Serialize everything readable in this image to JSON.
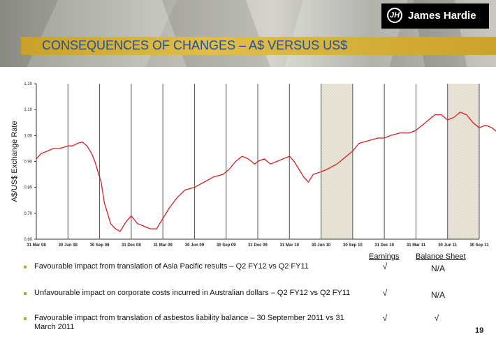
{
  "header": {
    "title": "CONSEQUENCES OF CHANGES – A$ VERSUS US$",
    "logo_text": "James Hardie",
    "logo_mark": "JH"
  },
  "chart_data": {
    "type": "line",
    "title": "",
    "xlabel": "",
    "ylabel": "A$/US$ Exchange Rate",
    "ylim": [
      0.6,
      1.2
    ],
    "yticks": [
      "0.60",
      "0.70",
      "0.80",
      "0.90",
      "1.00",
      "1.10",
      "1.20"
    ],
    "x_categories": [
      "31 Mar 08",
      "30 Jun 08",
      "30 Sep 08",
      "31 Dec 08",
      "31 Mar 09",
      "30 Jun 09",
      "30 Sep 09",
      "31 Dec 09",
      "31 Mar 10",
      "30 Jun 10",
      "30 Sep 10",
      "31 Dec 10",
      "31 Mar 11",
      "30 Jun 11",
      "30 Sep 11"
    ],
    "shaded_periods": [
      [
        9,
        10
      ],
      [
        13,
        14
      ]
    ],
    "series": [
      {
        "color": "#d42020",
        "points": [
          [
            0,
            0.91
          ],
          [
            0.15,
            0.93
          ],
          [
            0.35,
            0.94
          ],
          [
            0.55,
            0.95
          ],
          [
            0.75,
            0.95
          ],
          [
            1,
            0.96
          ],
          [
            1.15,
            0.96
          ],
          [
            1.3,
            0.97
          ],
          [
            1.45,
            0.975
          ],
          [
            1.6,
            0.96
          ],
          [
            1.75,
            0.93
          ],
          [
            1.85,
            0.9
          ],
          [
            1.95,
            0.86
          ],
          [
            2.05,
            0.82
          ],
          [
            2.15,
            0.74
          ],
          [
            2.25,
            0.7
          ],
          [
            2.35,
            0.66
          ],
          [
            2.5,
            0.64
          ],
          [
            2.65,
            0.63
          ],
          [
            2.85,
            0.67
          ],
          [
            3.0,
            0.69
          ],
          [
            3.2,
            0.66
          ],
          [
            3.4,
            0.65
          ],
          [
            3.6,
            0.64
          ],
          [
            3.8,
            0.64
          ],
          [
            4.0,
            0.68
          ],
          [
            4.2,
            0.72
          ],
          [
            4.45,
            0.76
          ],
          [
            4.7,
            0.79
          ],
          [
            5.0,
            0.8
          ],
          [
            5.3,
            0.82
          ],
          [
            5.6,
            0.84
          ],
          [
            5.9,
            0.85
          ],
          [
            6.1,
            0.87
          ],
          [
            6.3,
            0.9
          ],
          [
            6.5,
            0.92
          ],
          [
            6.7,
            0.91
          ],
          [
            6.9,
            0.89
          ],
          [
            7.0,
            0.9
          ],
          [
            7.2,
            0.91
          ],
          [
            7.4,
            0.89
          ],
          [
            7.6,
            0.9
          ],
          [
            7.8,
            0.91
          ],
          [
            8.0,
            0.92
          ],
          [
            8.15,
            0.9
          ],
          [
            8.3,
            0.87
          ],
          [
            8.45,
            0.84
          ],
          [
            8.6,
            0.82
          ],
          [
            8.75,
            0.85
          ],
          [
            9.0,
            0.86
          ],
          [
            9.2,
            0.87
          ],
          [
            9.5,
            0.89
          ],
          [
            9.8,
            0.92
          ],
          [
            10.0,
            0.94
          ],
          [
            10.2,
            0.97
          ],
          [
            10.5,
            0.98
          ],
          [
            10.8,
            0.99
          ],
          [
            11.0,
            0.99
          ],
          [
            11.2,
            1.0
          ],
          [
            11.5,
            1.01
          ],
          [
            11.8,
            1.01
          ],
          [
            12.0,
            1.02
          ],
          [
            12.2,
            1.04
          ],
          [
            12.4,
            1.06
          ],
          [
            12.6,
            1.08
          ],
          [
            12.8,
            1.08
          ],
          [
            13.0,
            1.06
          ],
          [
            13.2,
            1.07
          ],
          [
            13.4,
            1.09
          ],
          [
            13.6,
            1.08
          ],
          [
            13.8,
            1.05
          ],
          [
            14.0,
            1.03
          ],
          [
            14.2,
            1.04
          ],
          [
            14.4,
            1.03
          ],
          [
            14.6,
            1.01
          ],
          [
            14.8,
            1.0
          ],
          [
            15.0,
            0.99
          ],
          [
            15.2,
            0.98
          ]
        ]
      }
    ]
  },
  "table": {
    "col_headers": [
      "Earnings",
      "Balance Sheet"
    ],
    "rows": [
      {
        "text": "Favourable impact from translation of Asia Pacific results – Q2 FY12 vs Q2 FY11",
        "earnings": "√",
        "balance": "N/A"
      },
      {
        "text": "Unfavourable impact on corporate costs incurred in Australian dollars – Q2 FY12 vs Q2 FY11",
        "earnings": "√",
        "balance": "N/A"
      },
      {
        "text": "Favourable impact from translation of asbestos liability balance – 30 September 2011 vs 31 March 2011",
        "earnings": "√",
        "balance": "√"
      }
    ]
  },
  "page_number": "19"
}
